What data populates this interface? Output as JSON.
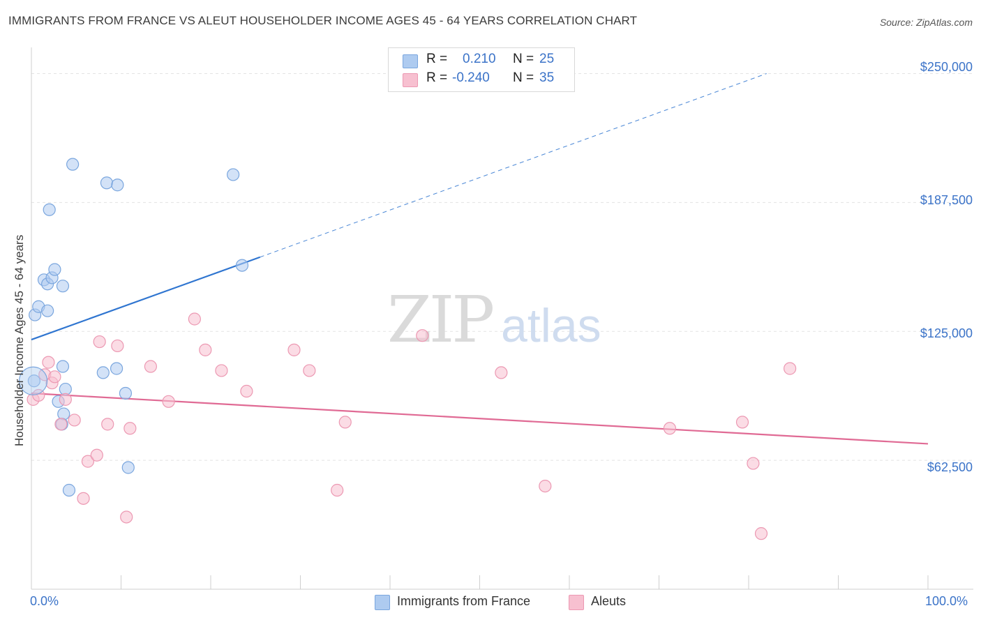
{
  "header": {
    "title": "IMMIGRANTS FROM FRANCE VS ALEUT HOUSEHOLDER INCOME AGES 45 - 64 YEARS CORRELATION CHART",
    "source": "Source: ZipAtlas.com"
  },
  "watermark": {
    "zip": "ZIP",
    "atlas": "atlas"
  },
  "stats": [
    {
      "r_label": "R =",
      "r_value": "0.210",
      "n_label": "N =",
      "n_value": "25"
    },
    {
      "r_label": "R =",
      "r_value": "-0.240",
      "n_label": "N =",
      "n_value": "35"
    }
  ],
  "legend": {
    "items": [
      "Immigrants from France",
      "Aleuts"
    ]
  },
  "colors": {
    "blue_fill": "#aecbf0",
    "blue_stroke": "#7aa6de",
    "blue_line": "#2f75d0",
    "pink_fill": "#f7c0d0",
    "pink_stroke": "#ec98b2",
    "pink_line": "#e06a94",
    "axis_text": "#3b73c8",
    "grid": "#e3e3e3"
  },
  "chart_data": {
    "type": "scatter",
    "title": "IMMIGRANTS FROM FRANCE VS ALEUT HOUSEHOLDER INCOME AGES 45 - 64 YEARS CORRELATION CHART",
    "xlabel": "",
    "ylabel": "Householder Income Ages 45 - 64 years",
    "xlim": [
      0,
      100
    ],
    "ylim": [
      0,
      262000
    ],
    "x_tick_labels": [
      "0.0%",
      "100.0%"
    ],
    "y_ticks": [
      62500,
      125000,
      187500,
      250000
    ],
    "y_tick_labels": [
      "$62,500",
      "$125,000",
      "$187,500",
      "$250,000"
    ],
    "grid": true,
    "series": [
      {
        "name": "Immigrants from France",
        "color": "blue",
        "points": [
          [
            0.3,
            101000
          ],
          [
            0.4,
            133000
          ],
          [
            0.8,
            137000
          ],
          [
            1.4,
            150000
          ],
          [
            1.8,
            135000
          ],
          [
            1.8,
            148000
          ],
          [
            2.0,
            184000
          ],
          [
            2.3,
            151000
          ],
          [
            2.6,
            155000
          ],
          [
            3.0,
            91000
          ],
          [
            3.5,
            147000
          ],
          [
            3.6,
            85000
          ],
          [
            3.4,
            80000
          ],
          [
            3.5,
            108000
          ],
          [
            3.8,
            97000
          ],
          [
            4.2,
            48000
          ],
          [
            4.6,
            206000
          ],
          [
            8.0,
            105000
          ],
          [
            8.4,
            197000
          ],
          [
            9.5,
            107000
          ],
          [
            9.6,
            196000
          ],
          [
            10.5,
            95000
          ],
          [
            10.8,
            59000
          ],
          [
            22.5,
            201000
          ],
          [
            23.5,
            157000
          ]
        ],
        "trend": {
          "x": [
            0,
            25.5
          ],
          "y": [
            121000,
            161000
          ],
          "dashed_to": [
            82,
            250000
          ]
        }
      },
      {
        "name": "Aleuts",
        "color": "pink",
        "points": [
          [
            0.2,
            92000
          ],
          [
            0.8,
            94000
          ],
          [
            1.5,
            104000
          ],
          [
            1.9,
            110000
          ],
          [
            2.3,
            100000
          ],
          [
            2.6,
            103000
          ],
          [
            3.3,
            80000
          ],
          [
            3.8,
            92000
          ],
          [
            4.8,
            82000
          ],
          [
            5.8,
            44000
          ],
          [
            6.3,
            62000
          ],
          [
            7.3,
            65000
          ],
          [
            7.6,
            120000
          ],
          [
            8.5,
            80000
          ],
          [
            9.6,
            118000
          ],
          [
            10.6,
            35000
          ],
          [
            11.0,
            78000
          ],
          [
            13.3,
            108000
          ],
          [
            15.3,
            91000
          ],
          [
            18.2,
            131000
          ],
          [
            19.4,
            116000
          ],
          [
            21.2,
            106000
          ],
          [
            24.0,
            96000
          ],
          [
            29.3,
            116000
          ],
          [
            31.0,
            106000
          ],
          [
            34.1,
            48000
          ],
          [
            35.0,
            81000
          ],
          [
            43.6,
            123000
          ],
          [
            52.4,
            105000
          ],
          [
            57.3,
            50000
          ],
          [
            71.2,
            78000
          ],
          [
            79.3,
            81000
          ],
          [
            80.5,
            61000
          ],
          [
            81.4,
            27000
          ],
          [
            84.6,
            107000
          ]
        ],
        "trend": {
          "x": [
            0,
            100
          ],
          "y": [
            95000,
            70500
          ]
        }
      }
    ]
  }
}
